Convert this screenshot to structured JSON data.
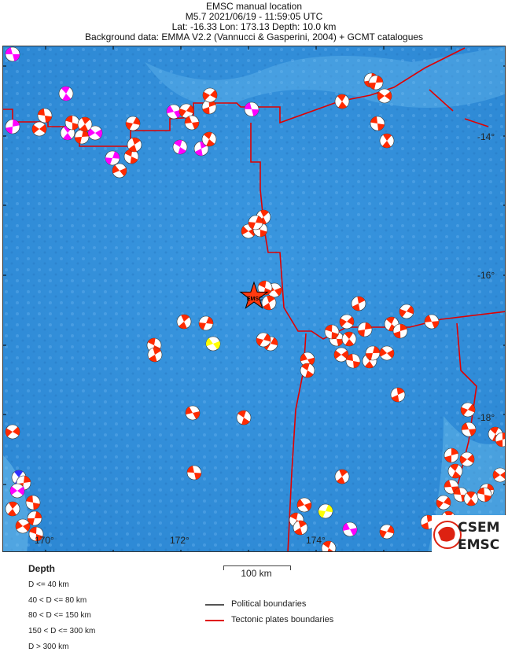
{
  "header": {
    "line1": "EMSC manual location",
    "line2": "M5.7  2021/06/19 - 11:59:05 UTC",
    "line3": "Lat: -16.33    Lon: 173.13     Depth:  10.0 km",
    "line4": "Background data: EMMA V2.2 (Vannucci & Gasperini, 2004) + GCMT catalogues"
  },
  "map": {
    "lat_labels": [
      "-14°",
      "-16°",
      "-18°"
    ],
    "lon_labels": [
      "170°",
      "172°",
      "174°"
    ],
    "epicenter_label": "EMSC",
    "colors": {
      "ocean": "#2f8fd8",
      "plate_boundary": "#e00000",
      "depth_shallow": "#ff2a00",
      "depth_80_150": "#ff00ff",
      "depth_40_80": "#ffff00",
      "depth_150_300": "#3030ff"
    }
  },
  "logo": {
    "line1": "CSEM",
    "line2": "EMSC"
  },
  "legend": {
    "depth_title": "Depth",
    "depth_classes": [
      "D <= 40 km",
      "40 < D <= 80 km",
      "80 < D <= 150 km",
      "150 < D <= 300 km",
      "D > 300 km"
    ],
    "scale": "100 km",
    "political": "Political boundaries",
    "tectonic": "Tectonic plates boundaries"
  }
}
